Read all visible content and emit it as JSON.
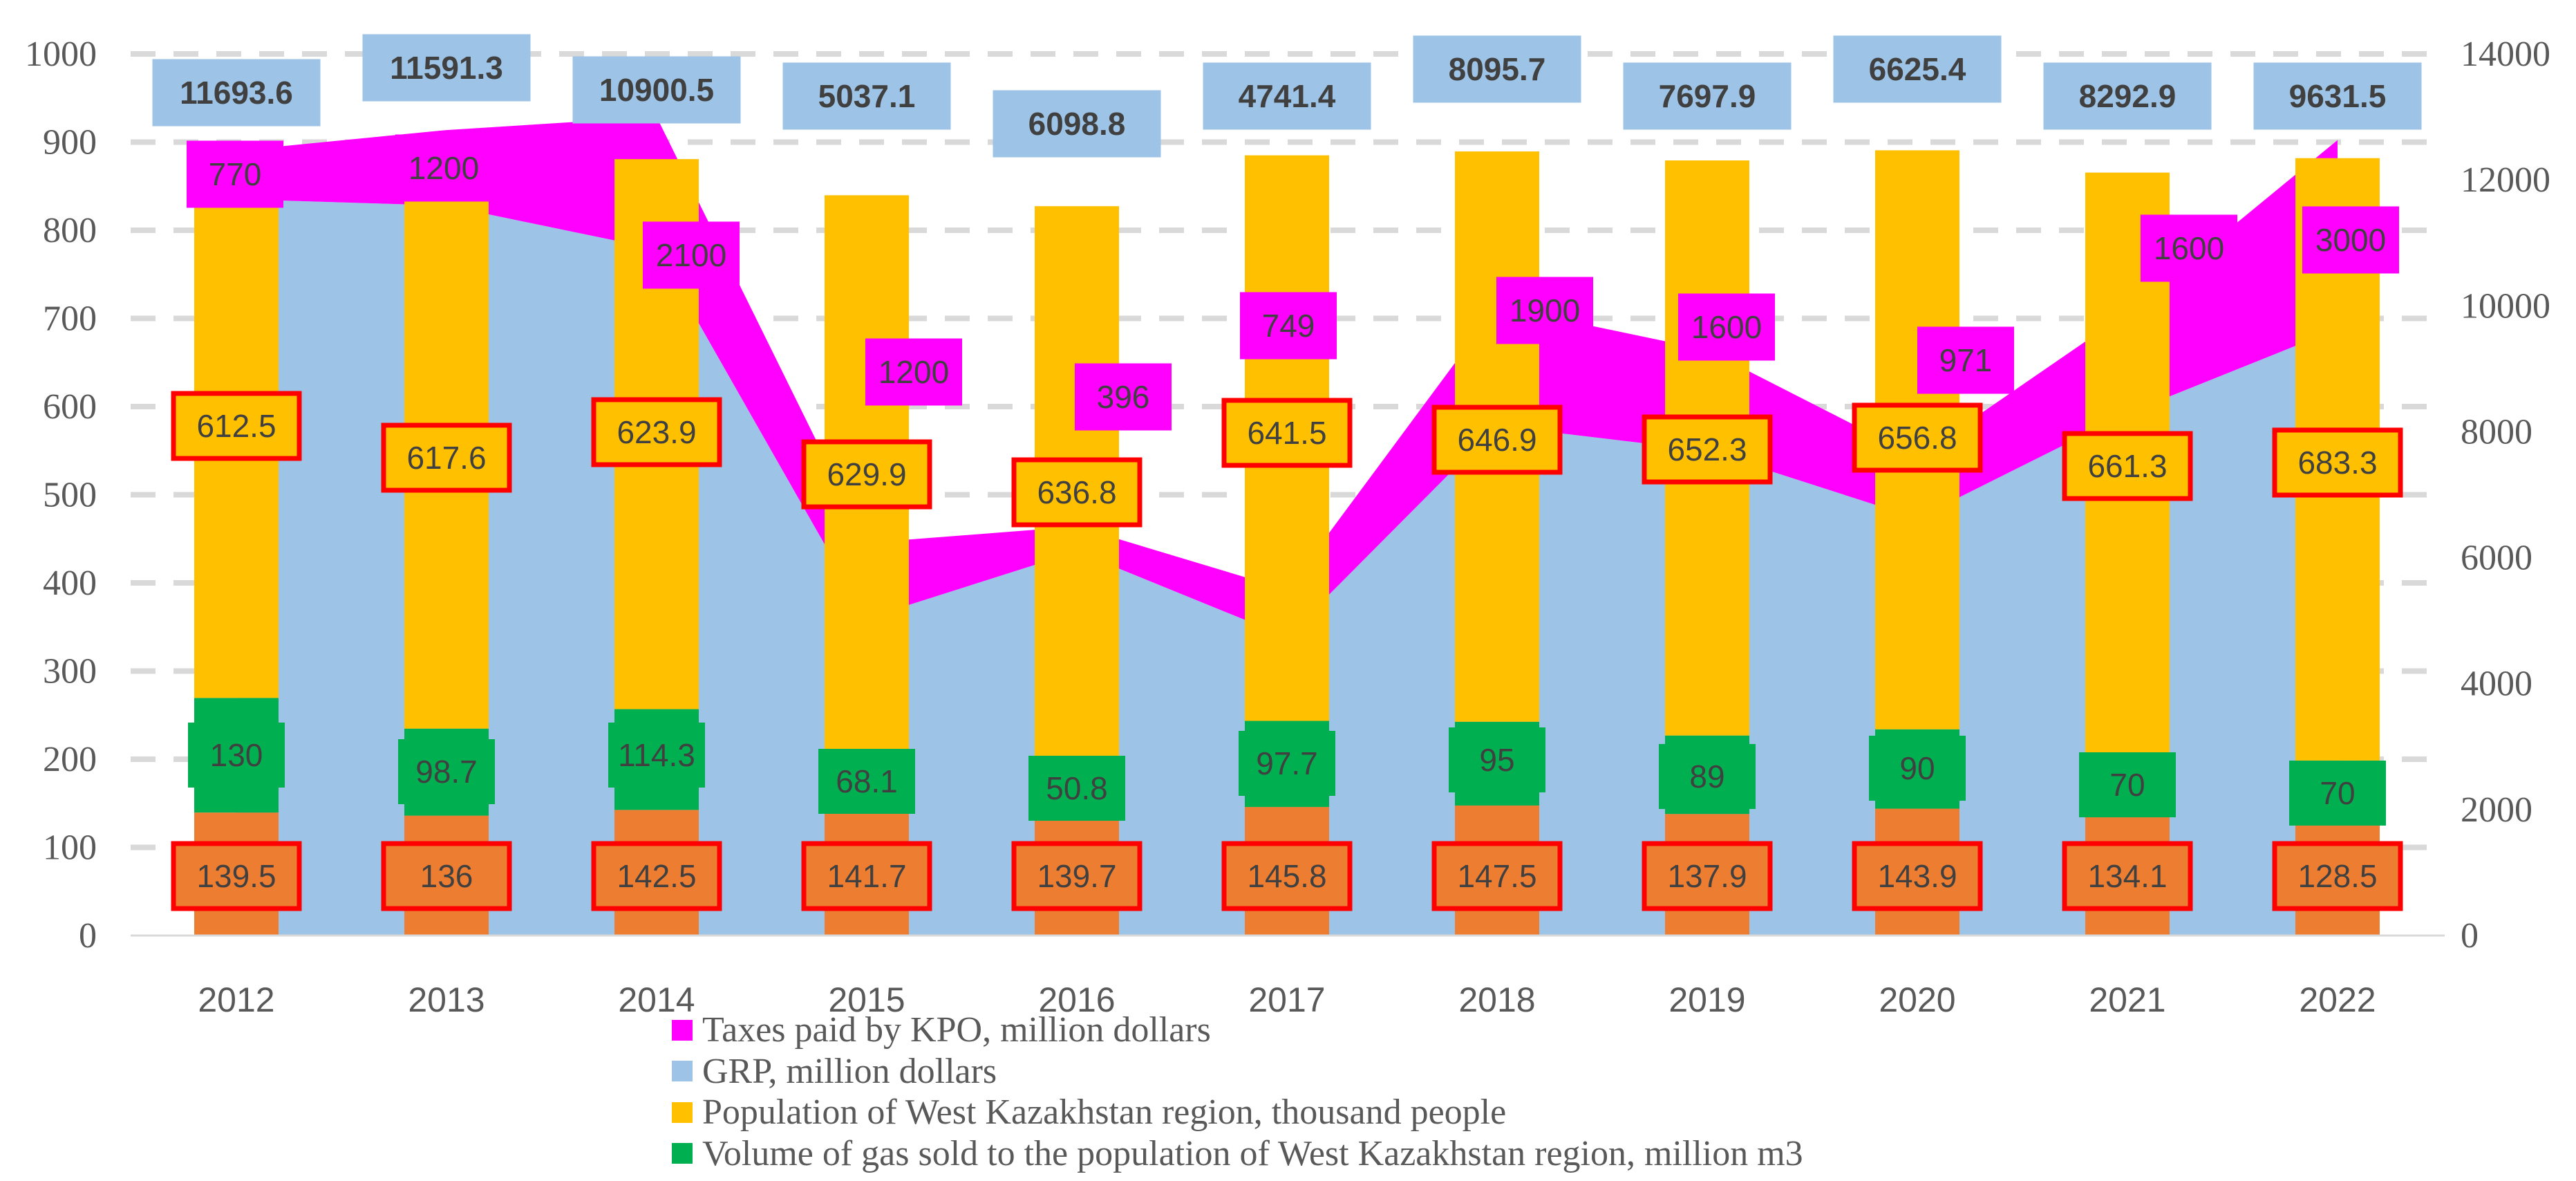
{
  "chart_data": {
    "type": "bar",
    "description_type": "combo: stacked columns (left axis) + stacked areas (right axis)",
    "categories": [
      "2012",
      "2013",
      "2014",
      "2015",
      "2016",
      "2017",
      "2018",
      "2019",
      "2020",
      "2021",
      "2022"
    ],
    "left_axis": {
      "min": 0,
      "max": 1000,
      "ticks": [
        "0",
        "100",
        "200",
        "300",
        "400",
        "500",
        "600",
        "700",
        "800",
        "900",
        "1000"
      ]
    },
    "right_axis": {
      "min": 0,
      "max": 14000,
      "ticks": [
        "0",
        "2000",
        "4000",
        "6000",
        "8000",
        "10000",
        "12000",
        "14000"
      ]
    },
    "grid": true,
    "legend_position": "bottom",
    "bar_series": [
      {
        "name": "",
        "color": "#ed7d31",
        "values": [
          139.5,
          136,
          142.5,
          141.7,
          139.7,
          145.8,
          147.5,
          137.9,
          143.9,
          134.1,
          128.5
        ],
        "labels": [
          "139.5",
          "136",
          "142.5",
          "141.7",
          "139.7",
          "145.8",
          "147.5",
          "137.9",
          "143.9",
          "134.1",
          "128.5"
        ]
      },
      {
        "name": "Volume of gas sold to the population of West Kazakhstan region, million m3",
        "color": "#00b050",
        "values": [
          130,
          98.7,
          114.3,
          68.1,
          50.8,
          97.7,
          95,
          89,
          90,
          70,
          70
        ],
        "labels": [
          "130",
          "98.7",
          "114.3",
          "68.1",
          "50.8",
          "97.7",
          "95",
          "89",
          "90",
          "70",
          "70"
        ]
      },
      {
        "name": "Population of West Kazakhstan region, thousand people",
        "color": "#ffc000",
        "values": [
          612.5,
          617.6,
          623.9,
          629.9,
          636.8,
          641.5,
          646.9,
          652.3,
          656.8,
          661.3,
          683.3
        ],
        "labels": [
          "612.5",
          "617.6",
          "623.9",
          "629.9",
          "636.8",
          "641.5",
          "646.9",
          "652.3",
          "656.8",
          "661.3",
          "683.3"
        ]
      }
    ],
    "area_series": [
      {
        "name": "GRP, million dollars",
        "color": "#9dc3e6",
        "values": [
          11693.6,
          11591.3,
          10900.5,
          5037.1,
          6098.8,
          4741.4,
          8095.7,
          7697.9,
          6625.4,
          8292.9,
          9631.5
        ],
        "labels": [
          "11693.6",
          "11591.3",
          "10900.5",
          "5037.1",
          "6098.8",
          "4741.4",
          "8095.7",
          "7697.9",
          "6625.4",
          "8292.9",
          "9631.5"
        ]
      },
      {
        "name": "Taxes paid by KPO, million dollars",
        "color": "#ff00ff",
        "values": [
          770,
          1200,
          2100,
          1200,
          396,
          749,
          1900,
          1600,
          971,
          1600,
          3000
        ],
        "labels": [
          "770",
          "1200",
          "2100",
          "1200",
          "396",
          "749",
          "1900",
          "1600",
          "971",
          "1600",
          "3000"
        ]
      }
    ],
    "legend": [
      {
        "name": "Taxes paid by KPO, million dollars",
        "color": "#ff00ff"
      },
      {
        "name": "GRP, million dollars",
        "color": "#9dc3e6"
      },
      {
        "name": "Population of West Kazakhstan region, thousand people",
        "color": "#ffc000"
      },
      {
        "name": "Volume of gas sold to the population of West Kazakhstan region, million m3",
        "color": "#00b050"
      }
    ],
    "label_border_color": "#ff0000"
  }
}
